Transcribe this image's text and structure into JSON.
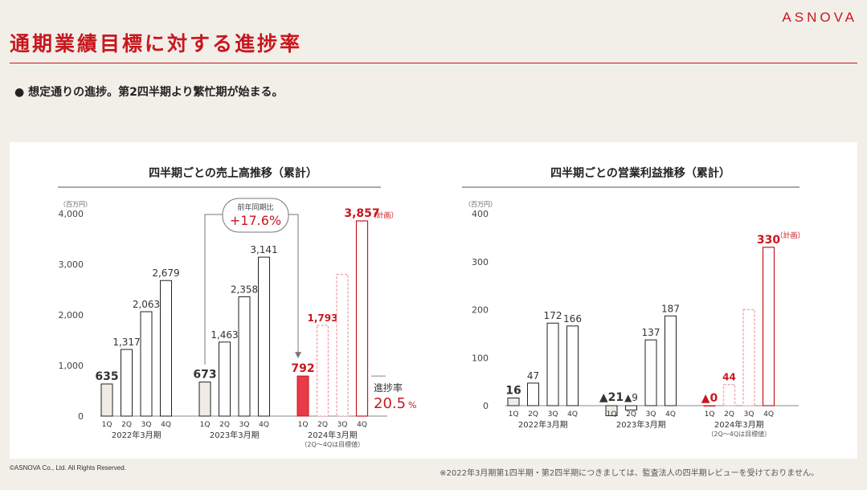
{
  "header": {
    "logo": "ASNOVA",
    "title": "通期業績目標に対する進捗率",
    "bullet": "● 想定通りの進捗。第2四半期より繁忙期が始まる。"
  },
  "footer": {
    "copyright": "©ASNOVA Co., Ltd. All Rights Reserved.",
    "note": "※2022年3月期第1四半期・第2四半期につきましては、監査法人の四半期レビューを受けておりません。"
  },
  "colors": {
    "accent": "#c8171e",
    "muted_bar": "#efece6",
    "plan_dashed": "#f2aab0",
    "current_bar": "#e83a48"
  },
  "chart_data": [
    {
      "type": "bar",
      "title": "四半期ごとの売上高推移（累計）",
      "unit": "（百万円）",
      "ylim": [
        0,
        4000
      ],
      "yticks": [
        "4,000",
        "3,000",
        "2,000",
        "1,000",
        "0"
      ],
      "quarters": [
        "1Q",
        "2Q",
        "3Q",
        "4Q"
      ],
      "groups": [
        {
          "label": "2022年3月期",
          "sublabel": "",
          "values": [
            635,
            1317,
            2063,
            2679
          ],
          "labels": [
            "635",
            "1,317",
            "2,063",
            "2,679"
          ]
        },
        {
          "label": "2023年3月期",
          "sublabel": "",
          "values": [
            673,
            1463,
            2358,
            3141
          ],
          "labels": [
            "673",
            "1,463",
            "2,358",
            "3,141"
          ]
        },
        {
          "label": "2024年3月期",
          "sublabel": "（2Q～4Qは目標値）",
          "values": [
            792,
            1793,
            2800,
            3857
          ],
          "labels": [
            "792",
            "1,793",
            "",
            "3,857"
          ]
        }
      ],
      "plan_note": "（計画）",
      "yoy_label": "前年同期比",
      "yoy_value": "+17.6",
      "yoy_unit": "%",
      "progress_label": "進捗率",
      "progress_value": "20.5",
      "progress_unit": "%"
    },
    {
      "type": "bar",
      "title": "四半期ごとの営業利益推移（累計）",
      "unit": "（百万円）",
      "ylim": [
        0,
        400
      ],
      "yticks": [
        "400",
        "300",
        "200",
        "100",
        "0"
      ],
      "quarters": [
        "1Q",
        "2Q",
        "3Q",
        "4Q"
      ],
      "groups": [
        {
          "label": "2022年3月期",
          "sublabel": "",
          "values": [
            16,
            47,
            172,
            166
          ],
          "labels": [
            "16",
            "47",
            "172",
            "166"
          ]
        },
        {
          "label": "2023年3月期",
          "sublabel": "",
          "values": [
            -21,
            -9,
            137,
            187
          ],
          "labels": [
            "▲21",
            "▲9",
            "137",
            "187"
          ]
        },
        {
          "label": "2024年3月期",
          "sublabel": "（2Q～4Qは目標値）",
          "values": [
            0,
            44,
            200,
            330
          ],
          "labels": [
            "▲0",
            "44",
            "",
            "330"
          ]
        }
      ],
      "plan_note": "（計画）"
    }
  ]
}
